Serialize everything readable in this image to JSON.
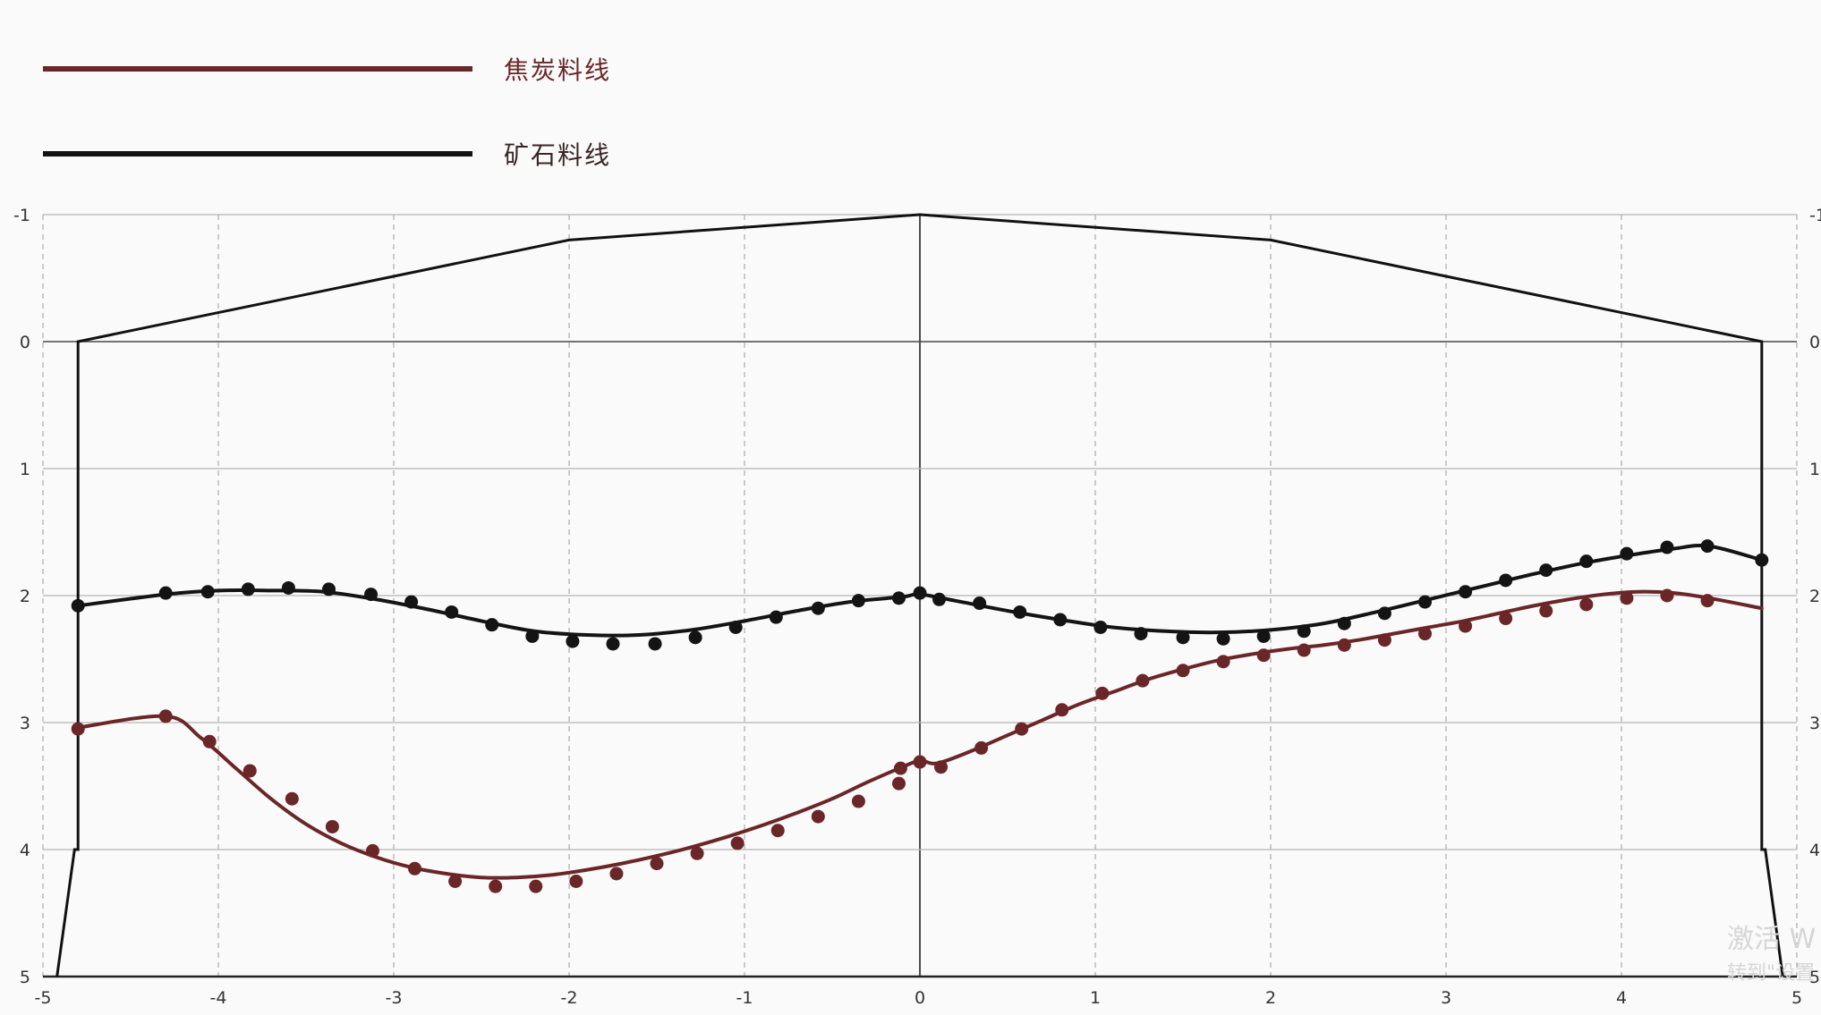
{
  "chart_data": {
    "type": "line",
    "xlim": [
      -5,
      5
    ],
    "ylim": [
      -1,
      5
    ],
    "y_inverted": true,
    "grid": true,
    "legend_placement": "top-left",
    "x_ticks": [
      -5,
      -4,
      -3,
      -2,
      -1,
      0,
      1,
      2,
      3,
      4,
      5
    ],
    "y_ticks": [
      -1,
      0,
      1,
      2,
      3,
      4,
      5
    ],
    "x_tick_labels": [
      "-5",
      "-4",
      "-3",
      "-2",
      "-1",
      "0",
      "1",
      "2",
      "3",
      "4",
      "5"
    ],
    "y_tick_labels": [
      "-1",
      "0",
      "1",
      "2",
      "3",
      "4",
      "5"
    ],
    "series": [
      {
        "name": "焦炭料线",
        "color": "#6b2628",
        "curve_x": [
          -4.8,
          -4.3,
          -4.1,
          -3.9,
          -3.7,
          -3.5,
          -3.3,
          -3.1,
          -2.9,
          -2.7,
          -2.5,
          -2.3,
          -2.1,
          -1.9,
          -1.7,
          -1.5,
          -1.3,
          -1.1,
          -0.9,
          -0.7,
          -0.5,
          -0.3,
          -0.1,
          0.0,
          0.1,
          0.3,
          0.5,
          0.7,
          0.9,
          1.1,
          1.3,
          1.5,
          1.7,
          1.9,
          2.1,
          2.3,
          2.5,
          2.7,
          2.9,
          3.1,
          3.3,
          3.5,
          3.7,
          3.9,
          4.1,
          4.3,
          4.5,
          4.8
        ],
        "curve_y": [
          3.04,
          2.95,
          3.12,
          3.36,
          3.6,
          3.8,
          3.95,
          4.06,
          4.14,
          4.19,
          4.22,
          4.22,
          4.2,
          4.16,
          4.11,
          4.05,
          3.98,
          3.9,
          3.81,
          3.71,
          3.6,
          3.47,
          3.35,
          3.3,
          3.32,
          3.22,
          3.1,
          2.98,
          2.86,
          2.76,
          2.66,
          2.58,
          2.51,
          2.46,
          2.42,
          2.39,
          2.35,
          2.3,
          2.25,
          2.2,
          2.14,
          2.08,
          2.03,
          1.99,
          1.97,
          1.98,
          2.02,
          2.1
        ],
        "points_x": [
          -4.8,
          -4.3,
          -4.05,
          -3.82,
          -3.58,
          -3.35,
          -3.12,
          -2.88,
          -2.65,
          -2.42,
          -2.19,
          -1.96,
          -1.73,
          -1.5,
          -1.27,
          -1.04,
          -0.81,
          -0.58,
          -0.35,
          -0.12,
          -0.11,
          0.0,
          0.12,
          0.35,
          0.58,
          0.81,
          1.04,
          1.27,
          1.5,
          1.73,
          1.96,
          2.19,
          2.42,
          2.65,
          2.88,
          3.11,
          3.34,
          3.57,
          3.8,
          4.03,
          4.26,
          4.49
        ],
        "points_y": [
          3.05,
          2.95,
          3.15,
          3.38,
          3.6,
          3.82,
          4.01,
          4.15,
          4.25,
          4.29,
          4.29,
          4.25,
          4.19,
          4.11,
          4.03,
          3.95,
          3.85,
          3.74,
          3.62,
          3.48,
          3.36,
          3.31,
          3.35,
          3.2,
          3.05,
          2.9,
          2.77,
          2.67,
          2.59,
          2.52,
          2.47,
          2.43,
          2.39,
          2.35,
          2.3,
          2.24,
          2.18,
          2.12,
          2.07,
          2.02,
          2.0,
          2.04
        ]
      },
      {
        "name": "矿石料线",
        "color": "#141414",
        "curve_x": [
          -4.8,
          -4.3,
          -4.0,
          -3.7,
          -3.4,
          -3.1,
          -2.8,
          -2.5,
          -2.2,
          -1.9,
          -1.6,
          -1.3,
          -1.0,
          -0.7,
          -0.4,
          -0.1,
          0.0,
          0.2,
          0.5,
          0.8,
          1.1,
          1.4,
          1.7,
          2.0,
          2.3,
          2.6,
          2.9,
          3.2,
          3.5,
          3.8,
          4.1,
          4.3,
          4.5,
          4.8
        ],
        "curve_y": [
          2.08,
          1.99,
          1.96,
          1.96,
          1.97,
          2.03,
          2.11,
          2.2,
          2.28,
          2.31,
          2.31,
          2.27,
          2.2,
          2.12,
          2.05,
          2.01,
          1.99,
          2.04,
          2.12,
          2.19,
          2.25,
          2.28,
          2.29,
          2.27,
          2.22,
          2.13,
          2.03,
          1.93,
          1.83,
          1.74,
          1.67,
          1.63,
          1.61,
          1.72
        ],
        "points_x": [
          -4.8,
          -4.3,
          -4.06,
          -3.83,
          -3.6,
          -3.37,
          -3.13,
          -2.9,
          -2.67,
          -2.44,
          -2.21,
          -1.98,
          -1.75,
          -1.51,
          -1.28,
          -1.05,
          -0.82,
          -0.58,
          -0.35,
          -0.12,
          0.0,
          0.11,
          0.34,
          0.57,
          0.8,
          1.03,
          1.26,
          1.5,
          1.73,
          1.96,
          2.19,
          2.42,
          2.65,
          2.88,
          3.11,
          3.34,
          3.57,
          3.8,
          4.03,
          4.26,
          4.49,
          4.8
        ],
        "points_y": [
          2.08,
          1.98,
          1.97,
          1.95,
          1.94,
          1.95,
          1.99,
          2.05,
          2.13,
          2.23,
          2.32,
          2.36,
          2.38,
          2.38,
          2.33,
          2.25,
          2.17,
          2.1,
          2.04,
          2.02,
          1.98,
          2.03,
          2.06,
          2.13,
          2.19,
          2.25,
          2.3,
          2.33,
          2.34,
          2.32,
          2.28,
          2.22,
          2.14,
          2.05,
          1.97,
          1.88,
          1.8,
          1.73,
          1.67,
          1.62,
          1.61,
          1.72
        ]
      }
    ],
    "furnace_profile": {
      "color": "#111111",
      "x": [
        -4.92,
        -4.82,
        -4.8,
        -4.8,
        -2.0,
        0.0,
        2.0,
        4.8,
        4.8,
        4.82,
        4.92
      ],
      "y": [
        5.0,
        4.0,
        4.0,
        0.0,
        -0.8,
        -1.0,
        -0.8,
        0.0,
        4.0,
        4.0,
        5.0
      ]
    }
  },
  "watermark": {
    "line1": "激活 W",
    "line2": "转到\"设置"
  }
}
